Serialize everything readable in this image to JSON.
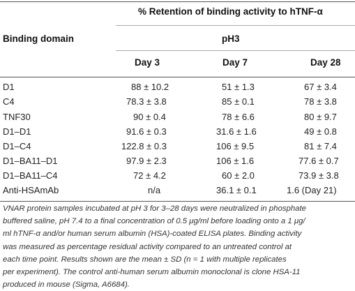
{
  "table": {
    "group_header": "% Retention of binding activity to hTNF-α",
    "sub_header": "pH3",
    "row_header": "Binding domain",
    "columns": [
      "Day 3",
      "Day 7",
      "Day 28"
    ],
    "rows": [
      {
        "label": "D1",
        "values": [
          "88 ± 10.2",
          "51 ± 1.3",
          "67 ± 3.4"
        ]
      },
      {
        "label": "C4",
        "values": [
          "78.3 ± 3.8",
          "85 ± 0.1",
          "78 ± 3.8"
        ]
      },
      {
        "label": "TNF30",
        "values": [
          "90 ± 0.4",
          "78 ± 6.6",
          "80 ± 9.7"
        ]
      },
      {
        "label": "D1–D1",
        "values": [
          "91.6 ± 0.3",
          "31.6 ± 1.6",
          "49 ± 0.8"
        ]
      },
      {
        "label": "D1–C4",
        "values": [
          "122.8 ± 0.3",
          "106 ± 9.5",
          "81 ± 7.4"
        ]
      },
      {
        "label": "D1–BA11–D1",
        "values": [
          "97.9 ± 2.3",
          "106 ± 1.6",
          "77.6 ± 0.7"
        ]
      },
      {
        "label": "D1–BA11–C4",
        "values": [
          "72 ± 4.2",
          "60 ± 2.0",
          "73.9 ± 3.8"
        ]
      },
      {
        "label": "Anti-HSAmAb",
        "values": [
          "n/a",
          "36.1 ± 0.1",
          "1.6 (Day 21)"
        ]
      }
    ]
  },
  "footnote": {
    "lines": [
      "VNAR protein samples incubated at pH 3 for 3–28 days were neutralized in phosphate",
      "buffered saline, pH 7.4 to a final concentration of 0.5 μg/ml before loading onto a 1 μg/",
      "ml hTNF-α and/or human serum albumin (HSA)-coated ELISA plates. Binding activity",
      "was measured as percentage residual activity compared to an untreated control at",
      "each time point. Results shown are the mean ± SD (n = 1 with multiple replicates",
      "per experiment). The control anti-human serum albumin monoclonal is clone HSA-11",
      "produced in mouse (Sigma, A6684)."
    ]
  }
}
